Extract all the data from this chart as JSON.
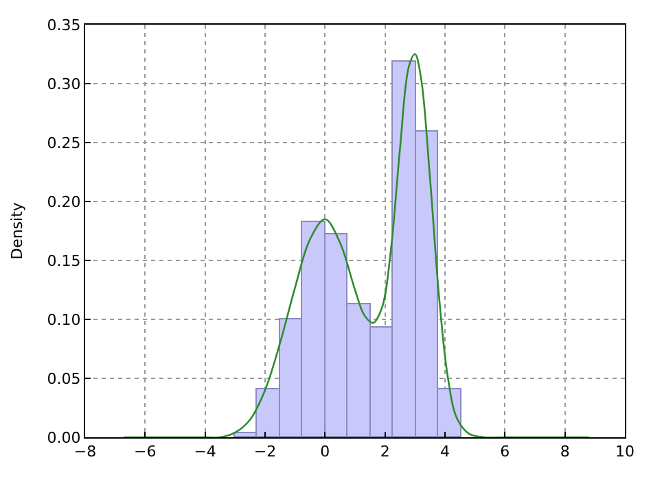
{
  "chart_data": {
    "type": "histogram",
    "ylabel": "Density",
    "bins": [
      -3.03,
      -2.27,
      -1.51,
      -0.76,
      0,
      0.76,
      1.51,
      2.27,
      3.03,
      3.79,
      4.55
    ],
    "values": [
      0.004,
      0.041,
      0.1,
      0.182,
      0.172,
      0.113,
      0.093,
      0.319,
      0.259,
      0.041
    ],
    "color": "#c8c8fa",
    "series": [
      {
        "type": "line",
        "color": "#2e8b2e",
        "x": [
          -6.7,
          -5,
          -4,
          -3.5,
          -3,
          -2.5,
          -2,
          -1.5,
          -1,
          -0.5,
          0,
          0.5,
          1,
          1.3,
          1.6,
          1.9,
          2.2,
          2.5,
          2.8,
          3.0,
          3.2,
          3.5,
          3.8,
          4.1,
          4.4,
          4.8,
          5.3,
          6,
          8.8
        ],
        "values": [
          0,
          0,
          0,
          0,
          0.004,
          0.015,
          0.04,
          0.08,
          0.127,
          0.168,
          0.185,
          0.165,
          0.125,
          0.104,
          0.097,
          0.11,
          0.16,
          0.245,
          0.315,
          0.325,
          0.305,
          0.22,
          0.12,
          0.05,
          0.016,
          0.003,
          0,
          0,
          0
        ]
      }
    ],
    "xlim": [
      -8,
      10
    ],
    "xticks": [
      -8,
      -6,
      -4,
      -2,
      0,
      2,
      4,
      6,
      8,
      10
    ],
    "ylim": [
      0,
      0.35
    ],
    "yticks": [
      {
        "value": 0,
        "label": "0.00"
      },
      {
        "value": 0.05,
        "label": "0.05"
      },
      {
        "value": 0.1,
        "label": "0.10"
      },
      {
        "value": 0.15,
        "label": "0.15"
      },
      {
        "value": 0.2,
        "label": "0.20"
      },
      {
        "value": 0.25,
        "label": "0.25"
      },
      {
        "value": 0.3,
        "label": "0.30"
      },
      {
        "value": 0.35,
        "label": "0.35"
      }
    ],
    "grid": true
  }
}
